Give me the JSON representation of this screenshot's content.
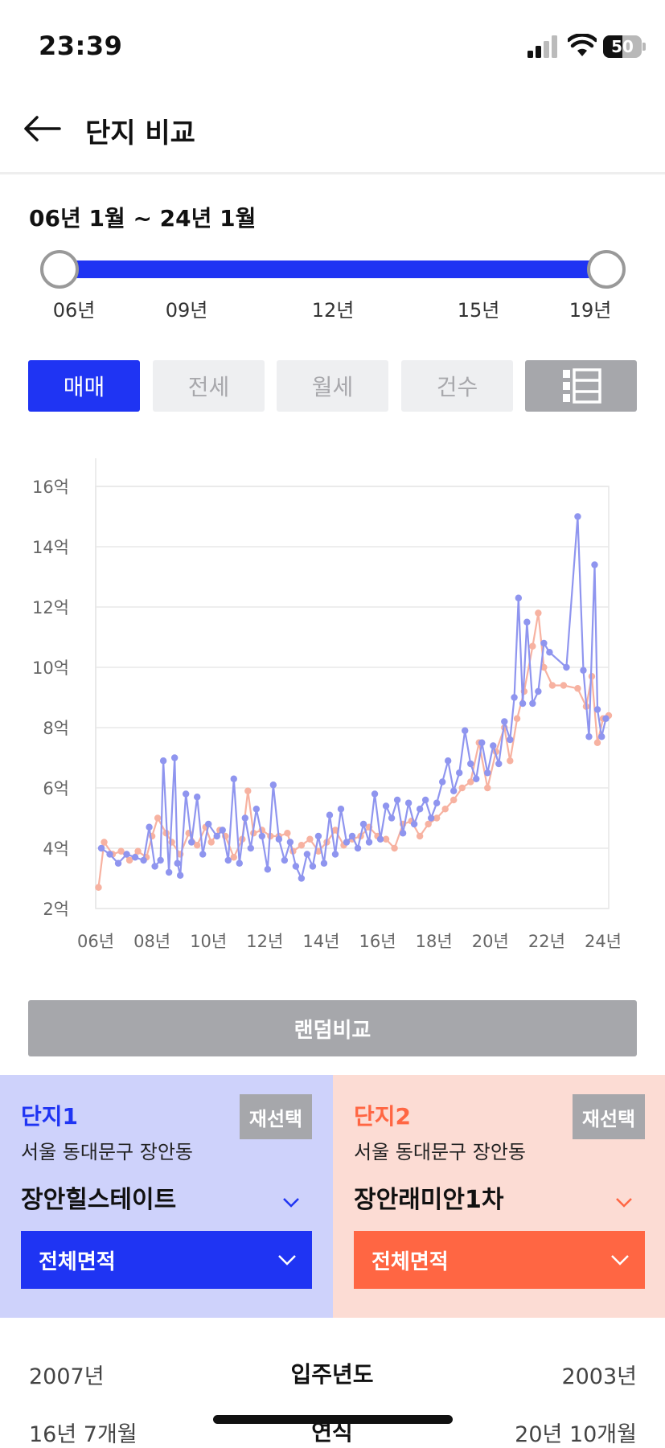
{
  "status": {
    "time": "23:39",
    "battery": "50",
    "battery_level": 0.5
  },
  "header": {
    "title": "단지 비교"
  },
  "range": {
    "label": "06년 1월 ~ 24년 1월",
    "ticks": [
      "06년",
      "09년",
      "12년",
      "15년",
      "19년"
    ]
  },
  "tabs": [
    {
      "label": "매매",
      "active": true
    },
    {
      "label": "전세",
      "active": false
    },
    {
      "label": "월세",
      "active": false
    },
    {
      "label": "건수",
      "active": false
    }
  ],
  "chart_data": {
    "type": "line",
    "title": "",
    "xlabel": "",
    "ylabel": "",
    "x_ticks": [
      "06년",
      "08년",
      "10년",
      "12년",
      "14년",
      "16년",
      "18년",
      "20년",
      "22년",
      "24년"
    ],
    "y_ticks": [
      "2억",
      "4억",
      "6억",
      "8억",
      "10억",
      "12억",
      "14억",
      "16억"
    ],
    "ylim": [
      2,
      16
    ],
    "xlim": [
      2006,
      2024.2
    ],
    "grid": true,
    "colors": {
      "series1": "#8f95ef",
      "series2": "#f7b2a1"
    },
    "series": [
      {
        "x": [
          2006.2,
          2006.5,
          2006.8,
          2007.1,
          2007.4,
          2007.7,
          2007.9,
          2008.1,
          2008.3,
          2008.4,
          2008.6,
          2008.8,
          2008.9,
          2009.0,
          2009.2,
          2009.4,
          2009.6,
          2009.8,
          2010.0,
          2010.3,
          2010.5,
          2010.7,
          2010.9,
          2011.1,
          2011.3,
          2011.5,
          2011.7,
          2011.9,
          2012.1,
          2012.3,
          2012.5,
          2012.7,
          2012.9,
          2013.1,
          2013.3,
          2013.5,
          2013.7,
          2013.9,
          2014.1,
          2014.3,
          2014.5,
          2014.7,
          2014.9,
          2015.1,
          2015.3,
          2015.5,
          2015.7,
          2015.9,
          2016.1,
          2016.3,
          2016.5,
          2016.7,
          2016.9,
          2017.1,
          2017.3,
          2017.5,
          2017.7,
          2017.9,
          2018.1,
          2018.3,
          2018.5,
          2018.7,
          2018.9,
          2019.1,
          2019.3,
          2019.5,
          2019.7,
          2019.9,
          2020.1,
          2020.3,
          2020.5,
          2020.7,
          2020.85,
          2021.0,
          2021.15,
          2021.3,
          2021.5,
          2021.7,
          2021.9,
          2022.1,
          2022.7,
          2023.1,
          2023.3,
          2023.5,
          2023.7,
          2023.8,
          2023.95,
          2024.1
        ],
        "y": [
          4.0,
          3.8,
          3.5,
          3.8,
          3.7,
          3.6,
          4.7,
          3.4,
          3.6,
          6.9,
          3.2,
          7.0,
          3.5,
          3.1,
          5.8,
          4.2,
          5.7,
          3.8,
          4.8,
          4.4,
          4.6,
          3.6,
          6.3,
          3.5,
          5.0,
          4.0,
          5.3,
          4.4,
          3.3,
          6.1,
          4.3,
          3.6,
          4.2,
          3.4,
          3.0,
          3.8,
          3.4,
          4.4,
          3.5,
          5.1,
          3.8,
          5.3,
          4.2,
          4.4,
          4.0,
          4.8,
          4.2,
          5.8,
          4.3,
          5.4,
          5.0,
          5.6,
          4.5,
          5.5,
          4.8,
          5.3,
          5.6,
          5.0,
          5.5,
          6.2,
          6.9,
          5.9,
          6.5,
          7.9,
          6.8,
          6.3,
          7.5,
          6.5,
          7.4,
          6.8,
          8.2,
          7.6,
          9.0,
          12.3,
          8.8,
          11.5,
          8.8,
          9.2,
          10.8,
          10.5,
          10.0,
          15.0,
          9.9,
          7.7,
          13.4,
          8.6,
          7.7,
          8.3
        ]
      },
      {
        "x": [
          2006.1,
          2006.3,
          2006.6,
          2006.9,
          2007.2,
          2007.5,
          2007.8,
          2008.0,
          2008.2,
          2008.5,
          2008.7,
          2009.0,
          2009.3,
          2009.6,
          2009.9,
          2010.1,
          2010.4,
          2010.6,
          2010.9,
          2011.2,
          2011.4,
          2011.6,
          2011.9,
          2012.2,
          2012.5,
          2012.8,
          2013.0,
          2013.3,
          2013.6,
          2013.9,
          2014.2,
          2014.5,
          2014.8,
          2015.1,
          2015.4,
          2015.7,
          2016.0,
          2016.3,
          2016.6,
          2016.9,
          2017.2,
          2017.5,
          2017.8,
          2018.1,
          2018.4,
          2018.7,
          2019.0,
          2019.3,
          2019.6,
          2019.9,
          2020.2,
          2020.5,
          2020.7,
          2020.95,
          2021.2,
          2021.5,
          2021.7,
          2021.9,
          2022.2,
          2022.6,
          2023.1,
          2023.4,
          2023.6,
          2023.8,
          2024.0,
          2024.2
        ],
        "y": [
          2.7,
          4.2,
          3.8,
          3.9,
          3.6,
          3.9,
          3.7,
          4.4,
          5.0,
          4.5,
          4.2,
          3.8,
          4.5,
          4.1,
          4.7,
          4.2,
          4.6,
          4.4,
          3.7,
          4.3,
          5.9,
          4.5,
          4.6,
          4.4,
          4.4,
          4.5,
          3.9,
          4.1,
          4.3,
          3.9,
          4.2,
          4.6,
          4.1,
          4.3,
          4.4,
          4.7,
          4.4,
          4.3,
          4.0,
          4.8,
          4.9,
          4.4,
          4.8,
          5.0,
          5.3,
          5.6,
          6.0,
          6.2,
          7.5,
          6.0,
          7.2,
          8.0,
          6.9,
          8.3,
          9.2,
          10.7,
          11.8,
          10.0,
          9.4,
          9.4,
          9.3,
          8.7,
          9.7,
          7.5,
          8.3,
          8.4
        ]
      }
    ]
  },
  "random_compare": {
    "label": "랜덤비교"
  },
  "complex1": {
    "tag": "단지1",
    "reselect": "재선택",
    "address": "서울 동대문구 장안동",
    "name": "장안힐스테이트",
    "area": "전체면적"
  },
  "complex2": {
    "tag": "단지2",
    "reselect": "재선택",
    "address": "서울 동대문구 장안동",
    "name": "장안래미안1차",
    "area": "전체면적"
  },
  "info_rows": [
    {
      "left": "2007년",
      "label": "입주년도",
      "right": "2003년"
    },
    {
      "left": "16년 7개월",
      "label": "연식",
      "right": "20년 10개월"
    }
  ]
}
